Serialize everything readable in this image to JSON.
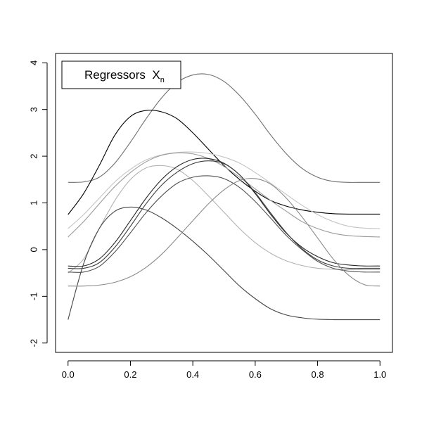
{
  "chart_data": {
    "type": "line",
    "xlim": [
      -0.04,
      1.04
    ],
    "ylim": [
      -2.2,
      4.2
    ],
    "x_ticks": [
      0.0,
      0.2,
      0.4,
      0.6,
      0.8,
      1.0
    ],
    "x_tick_labels": [
      "0.0",
      "0.2",
      "0.4",
      "0.6",
      "0.8",
      "1.0"
    ],
    "y_ticks": [
      -2,
      -1,
      0,
      1,
      2,
      3,
      4
    ],
    "y_tick_labels": [
      "-2",
      "-1",
      "0",
      "1",
      "2",
      "3",
      "4"
    ],
    "grid": false,
    "legend": {
      "placement": "top-left",
      "text": "Regressors  X",
      "subscript": "n"
    },
    "x": [
      0.0,
      0.05,
      0.1,
      0.15,
      0.2,
      0.25,
      0.3,
      0.35,
      0.4,
      0.45,
      0.5,
      0.55,
      0.6,
      0.65,
      0.7,
      0.75,
      0.8,
      0.85,
      0.9,
      0.95,
      1.0
    ],
    "series": [
      {
        "color": "#6e6e6e",
        "values": [
          1.44,
          1.45,
          1.55,
          1.85,
          2.3,
          2.8,
          3.25,
          3.58,
          3.74,
          3.75,
          3.6,
          3.3,
          2.9,
          2.45,
          2.05,
          1.74,
          1.55,
          1.46,
          1.44,
          1.44,
          1.44
        ]
      },
      {
        "color": "#000000",
        "values": [
          0.75,
          1.2,
          1.8,
          2.45,
          2.85,
          2.98,
          2.95,
          2.8,
          2.5,
          2.15,
          1.8,
          1.5,
          1.25,
          1.05,
          0.93,
          0.85,
          0.8,
          0.77,
          0.76,
          0.76,
          0.76
        ]
      },
      {
        "color": "#c4c4c4",
        "values": [
          0.45,
          0.75,
          1.1,
          1.45,
          1.72,
          1.92,
          2.03,
          2.08,
          2.09,
          2.06,
          1.98,
          1.85,
          1.65,
          1.42,
          1.18,
          0.95,
          0.75,
          0.6,
          0.5,
          0.46,
          0.45
        ]
      },
      {
        "color": "#9a9a9a",
        "values": [
          0.27,
          0.6,
          0.98,
          1.35,
          1.65,
          1.88,
          2.02,
          2.07,
          2.05,
          1.95,
          1.78,
          1.55,
          1.3,
          1.05,
          0.82,
          0.6,
          0.45,
          0.35,
          0.3,
          0.28,
          0.27
        ]
      },
      {
        "color": "#b2b2b2",
        "values": [
          -0.5,
          -0.2,
          0.45,
          1.05,
          1.5,
          1.75,
          1.8,
          1.72,
          1.48,
          1.15,
          0.8,
          0.45,
          0.15,
          -0.08,
          -0.24,
          -0.34,
          -0.4,
          -0.42,
          -0.43,
          -0.43,
          -0.43
        ]
      },
      {
        "color": "#262626",
        "values": [
          -0.35,
          -0.35,
          -0.2,
          0.15,
          0.62,
          1.1,
          1.5,
          1.78,
          1.93,
          1.95,
          1.85,
          1.6,
          1.2,
          0.75,
          0.35,
          0.05,
          -0.15,
          -0.28,
          -0.33,
          -0.35,
          -0.35
        ]
      },
      {
        "color": "#3c3c3c",
        "values": [
          -0.4,
          -0.4,
          -0.28,
          0.05,
          0.5,
          0.98,
          1.38,
          1.66,
          1.84,
          1.9,
          1.84,
          1.6,
          1.22,
          0.78,
          0.36,
          0.02,
          -0.22,
          -0.35,
          -0.4,
          -0.4,
          -0.4
        ]
      },
      {
        "color": "#505050",
        "values": [
          -0.48,
          -0.48,
          -0.36,
          -0.05,
          0.36,
          0.79,
          1.15,
          1.42,
          1.55,
          1.58,
          1.52,
          1.33,
          1.03,
          0.67,
          0.3,
          0.0,
          -0.25,
          -0.4,
          -0.46,
          -0.48,
          -0.48
        ]
      },
      {
        "color": "#444444",
        "values": [
          -1.5,
          -0.3,
          0.45,
          0.82,
          0.91,
          0.85,
          0.68,
          0.45,
          0.18,
          -0.12,
          -0.45,
          -0.78,
          -1.05,
          -1.27,
          -1.4,
          -1.46,
          -1.49,
          -1.5,
          -1.5,
          -1.5,
          -1.5
        ]
      },
      {
        "color": "#8a8a8a",
        "values": [
          -0.78,
          -0.78,
          -0.76,
          -0.7,
          -0.58,
          -0.38,
          -0.1,
          0.25,
          0.62,
          0.98,
          1.28,
          1.48,
          1.52,
          1.4,
          1.1,
          0.7,
          0.25,
          -0.2,
          -0.55,
          -0.75,
          -0.78
        ]
      }
    ]
  }
}
